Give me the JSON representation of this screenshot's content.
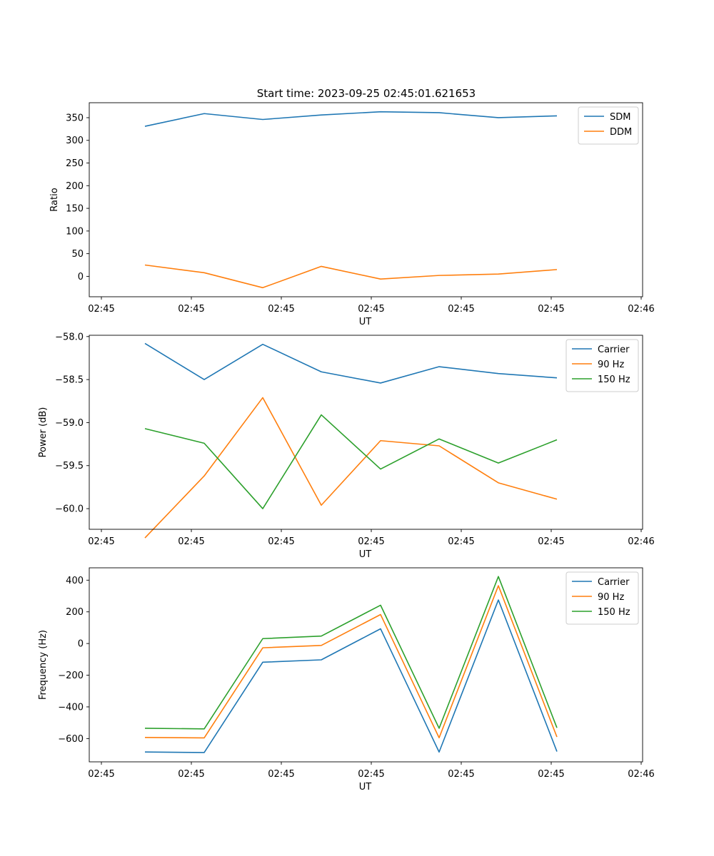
{
  "figure": {
    "title": "Start time: 2023-09-25 02:45:01.621653"
  },
  "chart_data": [
    {
      "type": "line",
      "xlabel": "UT",
      "ylabel": "Ratio",
      "x_tick_labels": [
        "02:45",
        "02:45",
        "02:45",
        "02:45",
        "02:45",
        "02:45",
        "02:46"
      ],
      "y_ticks": [
        0,
        50,
        100,
        150,
        200,
        250,
        300,
        350
      ],
      "y_tick_labels": [
        "0",
        "50",
        "100",
        "150",
        "200",
        "250",
        "300",
        "350"
      ],
      "ylim": [
        -45,
        383
      ],
      "grid": false,
      "legend_position": "top-right",
      "series": [
        {
          "name": "SDM",
          "color": "#1f77b4",
          "values": [
            331,
            359,
            346,
            356,
            363,
            361,
            350,
            354
          ]
        },
        {
          "name": "DDM",
          "color": "#ff7f0e",
          "values": [
            25,
            8,
            -25,
            22,
            -6,
            2,
            5,
            15
          ]
        }
      ]
    },
    {
      "type": "line",
      "xlabel": "UT",
      "ylabel": "Power (dB)",
      "x_tick_labels": [
        "02:45",
        "02:45",
        "02:45",
        "02:45",
        "02:45",
        "02:45",
        "02:46"
      ],
      "y_ticks": [
        -60.0,
        -59.5,
        -59.0,
        -58.5,
        -58.0
      ],
      "y_tick_labels": [
        "−60.0",
        "−59.5",
        "−59.0",
        "−58.5",
        "−58.0"
      ],
      "ylim": [
        -60.24,
        -57.985
      ],
      "grid": false,
      "legend_position": "top-right",
      "series": [
        {
          "name": "Carrier",
          "color": "#1f77b4",
          "values": [
            -58.08,
            -58.5,
            -58.09,
            -58.41,
            -58.54,
            -58.35,
            -58.43,
            -58.48
          ]
        },
        {
          "name": "90 Hz",
          "color": "#ff7f0e",
          "values": [
            -60.34,
            -59.62,
            -58.71,
            -59.96,
            -59.21,
            -59.27,
            -59.7,
            -59.89
          ]
        },
        {
          "name": "150 Hz",
          "color": "#2ca02c",
          "values": [
            -59.07,
            -59.24,
            -60.0,
            -58.91,
            -59.54,
            -59.19,
            -59.47,
            -59.2
          ]
        }
      ]
    },
    {
      "type": "line",
      "xlabel": "UT",
      "ylabel": "Frequency (Hz)",
      "x_tick_labels": [
        "02:45",
        "02:45",
        "02:45",
        "02:45",
        "02:45",
        "02:45",
        "02:46"
      ],
      "y_ticks": [
        -600,
        -400,
        -200,
        0,
        200,
        400
      ],
      "y_tick_labels": [
        "−600",
        "−400",
        "−200",
        "0",
        "200",
        "400"
      ],
      "ylim": [
        -747,
        478
      ],
      "grid": false,
      "legend_position": "top-right",
      "series": [
        {
          "name": "Carrier",
          "color": "#1f77b4",
          "values": [
            -685,
            -688,
            -118,
            -103,
            93,
            -685,
            275,
            -682
          ]
        },
        {
          "name": "90 Hz",
          "color": "#ff7f0e",
          "values": [
            -593,
            -596,
            -27,
            -12,
            183,
            -595,
            365,
            -590
          ]
        },
        {
          "name": "150 Hz",
          "color": "#2ca02c",
          "values": [
            -535,
            -539,
            31,
            47,
            242,
            -535,
            423,
            -532
          ]
        }
      ]
    }
  ]
}
